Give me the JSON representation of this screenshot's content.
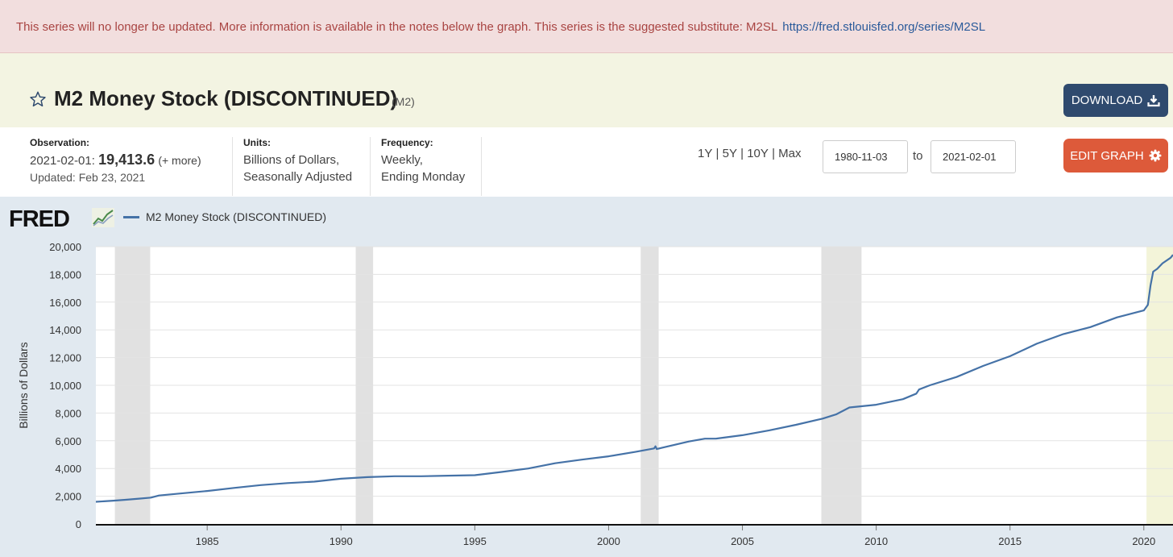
{
  "notice": {
    "message": "This series will no longer be updated. More information is available in the notes below the graph. This series is the suggested substitute: M2SL",
    "link": "https://fred.stlouisfed.org/series/M2SL"
  },
  "header": {
    "title": "M2 Money Stock (DISCONTINUED)",
    "series_id": "(M2)",
    "download_label": "DOWNLOAD"
  },
  "meta": {
    "observation_label": "Observation:",
    "observation_date": "2021-02-01:",
    "observation_value": "19,413.6",
    "more_label": "(+ more)",
    "updated": "Updated: Feb 23, 2021",
    "units_label": "Units:",
    "units_line1": "Billions of Dollars,",
    "units_line2": "Seasonally Adjusted",
    "frequency_label": "Frequency:",
    "frequency_line1": "Weekly,",
    "frequency_line2": "Ending Monday"
  },
  "controls": {
    "range_1y": "1Y",
    "range_5y": "5Y",
    "range_10y": "10Y",
    "range_max": "Max",
    "separator": "|",
    "start_date": "1980-11-03",
    "to_label": "to",
    "end_date": "2021-02-01",
    "edit_label": "EDIT GRAPH"
  },
  "branding": {
    "logo_text": "FRED"
  },
  "colors": {
    "series": "#4572a7",
    "recession": "#e1e1e1",
    "highlight": "#f3f4d9",
    "accent_edit": "#dd5a3a",
    "accent_download": "#2f4a6e"
  },
  "icons": {
    "favorite": "star-outline-icon",
    "download": "download-icon",
    "settings": "gear-icon",
    "logo_graph": "chart-trend-icon"
  },
  "chart_data": {
    "type": "line",
    "title": "",
    "xlabel": "",
    "ylabel": "Billions of Dollars",
    "xlim": [
      1980.84,
      2021.09
    ],
    "ylim": [
      0,
      20000
    ],
    "y_ticks": [
      0,
      2000,
      4000,
      6000,
      8000,
      10000,
      12000,
      14000,
      16000,
      18000,
      20000
    ],
    "y_tick_labels": [
      "0",
      "2,000",
      "4,000",
      "6,000",
      "8,000",
      "10,000",
      "12,000",
      "14,000",
      "16,000",
      "18,000",
      "20,000"
    ],
    "x_ticks": [
      1985,
      1990,
      1995,
      2000,
      2005,
      2010,
      2015,
      2020
    ],
    "x_tick_labels": [
      "1985",
      "1990",
      "1995",
      "2000",
      "2005",
      "2010",
      "2015",
      "2020"
    ],
    "grid": "horizontal",
    "legend": "top-left",
    "recessions": [
      [
        1981.55,
        1982.87
      ],
      [
        1990.55,
        1991.2
      ],
      [
        2001.2,
        2001.87
      ],
      [
        2007.95,
        2009.45
      ]
    ],
    "highlight_range": [
      2020.1,
      2021.09
    ],
    "series": [
      {
        "name": "M2 Money Stock (DISCONTINUED)",
        "x": [
          1980.84,
          1981.5,
          1982.0,
          1982.5,
          1982.9,
          1983.2,
          1984.0,
          1985.0,
          1986.0,
          1987.0,
          1988.0,
          1989.0,
          1990.0,
          1991.0,
          1992.0,
          1993.0,
          1994.0,
          1995.0,
          1996.0,
          1997.0,
          1998.0,
          1999.0,
          2000.0,
          2001.0,
          2001.7,
          2001.75,
          2001.8,
          2002.0,
          2003.0,
          2003.6,
          2004.0,
          2005.0,
          2006.0,
          2007.0,
          2008.0,
          2008.5,
          2009.0,
          2010.0,
          2011.0,
          2011.5,
          2011.6,
          2012.0,
          2013.0,
          2014.0,
          2015.0,
          2016.0,
          2017.0,
          2018.0,
          2019.0,
          2020.0,
          2020.15,
          2020.25,
          2020.35,
          2020.5,
          2020.7,
          2021.0,
          2021.09
        ],
        "values": [
          1600,
          1680,
          1750,
          1830,
          1900,
          2050,
          2200,
          2380,
          2600,
          2800,
          2950,
          3050,
          3260,
          3380,
          3440,
          3440,
          3480,
          3520,
          3750,
          4000,
          4380,
          4640,
          4880,
          5200,
          5450,
          5600,
          5400,
          5500,
          5950,
          6150,
          6150,
          6400,
          6750,
          7150,
          7600,
          7900,
          8400,
          8600,
          9000,
          9400,
          9700,
          10000,
          10600,
          11400,
          12100,
          13000,
          13700,
          14200,
          14900,
          15400,
          15800,
          17200,
          18200,
          18400,
          18800,
          19200,
          19413.6
        ]
      }
    ]
  }
}
